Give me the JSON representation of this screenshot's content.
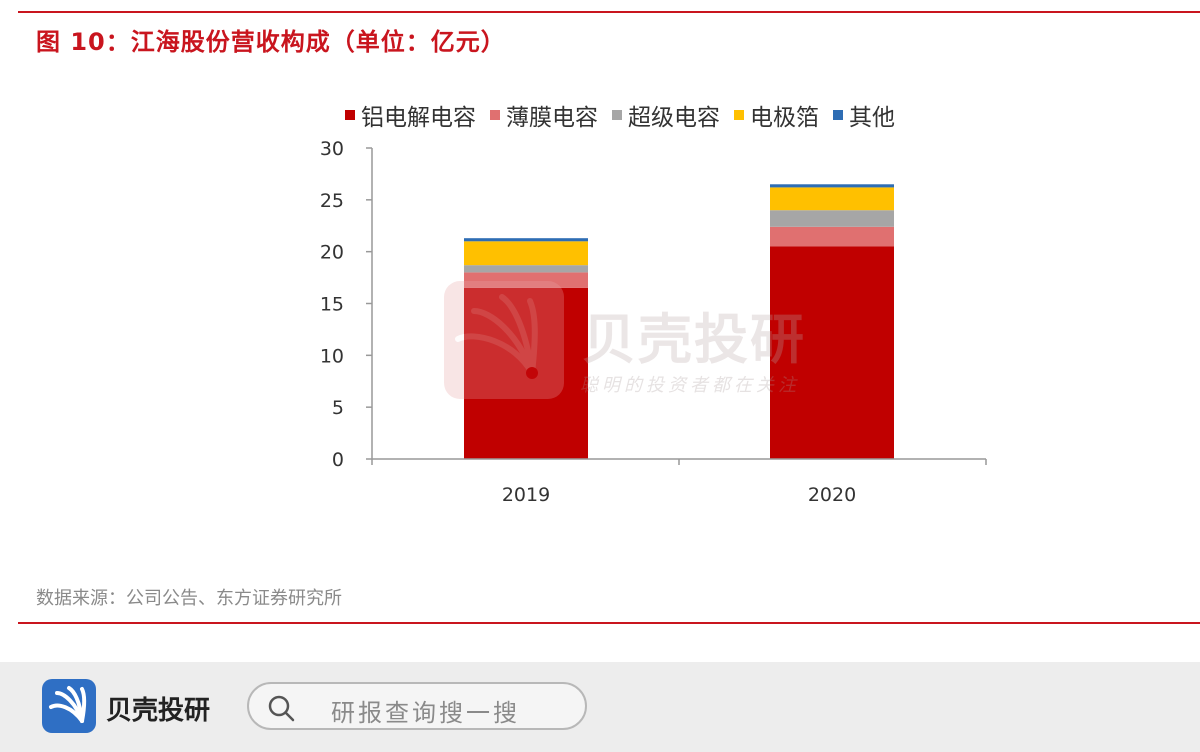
{
  "figure": {
    "title": "图 10：江海股份营收构成（单位：亿元）",
    "source": "数据来源：公司公告、东方证券研究所"
  },
  "watermark": {
    "name": "贝壳投研",
    "slogan": "聪明的投资者都在关注"
  },
  "footer": {
    "brand": "贝壳投研",
    "search_placeholder": "研报查询搜一搜",
    "search_icon": "search-icon",
    "logo_icon": "shell-logo-icon"
  },
  "chart_data": {
    "type": "bar",
    "stacked": true,
    "categories": [
      "2019",
      "2020"
    ],
    "series": [
      {
        "name": "铝电解电容",
        "color": "#c00000",
        "values": [
          16.5,
          20.5
        ]
      },
      {
        "name": "薄膜电容",
        "color": "#e07070",
        "values": [
          1.5,
          1.9
        ]
      },
      {
        "name": "超级电容",
        "color": "#a6a6a6",
        "values": [
          0.7,
          1.6
        ]
      },
      {
        "name": "电极箔",
        "color": "#ffc000",
        "values": [
          2.3,
          2.2
        ]
      },
      {
        "name": "其他",
        "color": "#2e6db4",
        "values": [
          0.3,
          0.3
        ]
      }
    ],
    "ylim": [
      0,
      30
    ],
    "yticks": [
      "0",
      "5",
      "10",
      "15",
      "20",
      "25",
      "30"
    ],
    "legend_position": "top",
    "grid": false,
    "title": "",
    "xlabel": "",
    "ylabel": ""
  }
}
